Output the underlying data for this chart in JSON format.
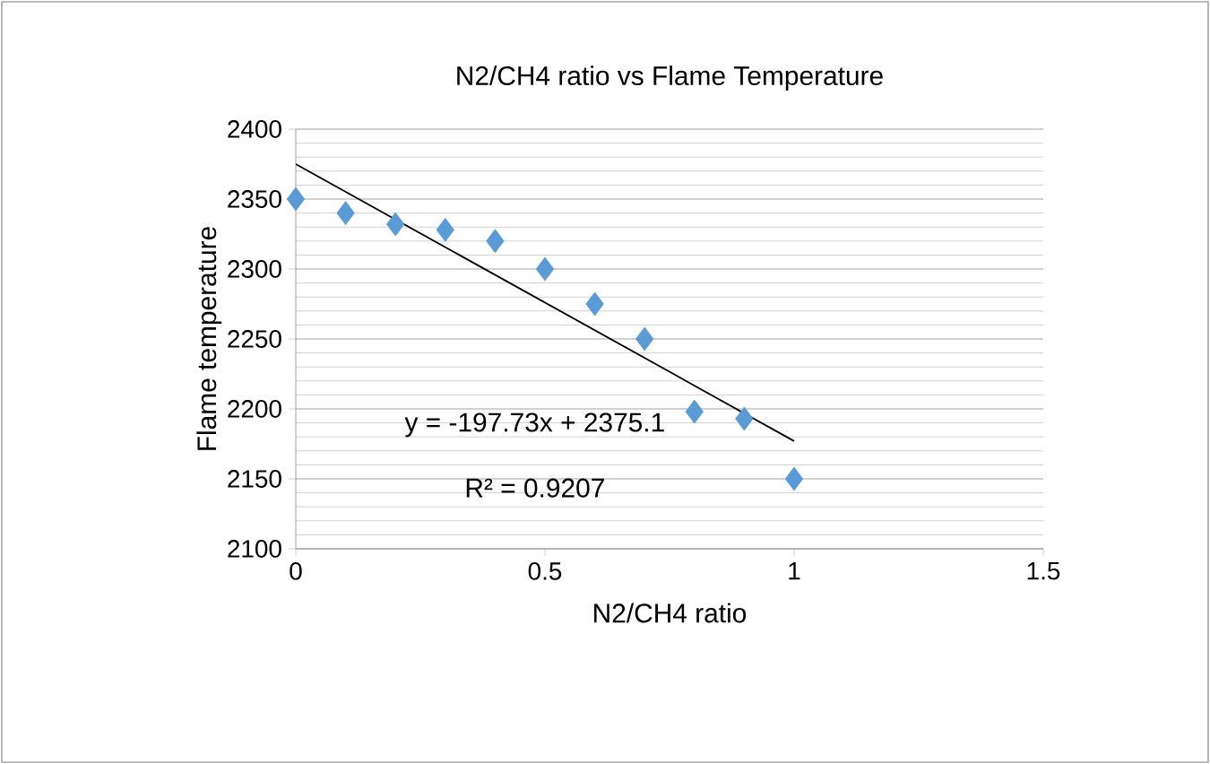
{
  "chart_data": {
    "type": "scatter",
    "title": "N2/CH4 ratio vs Flame Temperature",
    "xlabel": "N2/CH4 ratio",
    "ylabel": "Flame temperature",
    "series": [
      {
        "color": "#5b9bd5",
        "marker": "diamond",
        "x": [
          0,
          0.1,
          0.2,
          0.3,
          0.4,
          0.5,
          0.6,
          0.7,
          0.8,
          0.9,
          1.0
        ],
        "values": [
          2350,
          2340,
          2332,
          2328,
          2320,
          2300,
          2275,
          2250,
          2198,
          2193,
          2150
        ]
      },
      {
        "type": "line",
        "color": "#000000",
        "marker": "none",
        "x": [
          0,
          1
        ],
        "values": [
          2375,
          2177
        ]
      }
    ],
    "annotations": [
      "y = -197.73x + 2375.1",
      "R² = 0.9207"
    ],
    "xlim": [
      0,
      1.5
    ],
    "ylim": [
      2100,
      2400
    ],
    "xticks": [
      0,
      0.5,
      1,
      1.5
    ],
    "yticks": [
      2100,
      2150,
      2200,
      2250,
      2300,
      2350,
      2400
    ],
    "grid": "y"
  }
}
